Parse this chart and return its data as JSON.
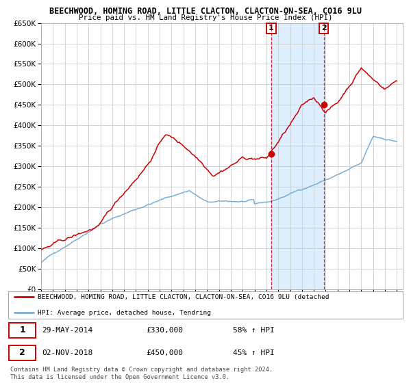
{
  "title1": "BEECHWOOD, HOMING ROAD, LITTLE CLACTON, CLACTON-ON-SEA, CO16 9LU",
  "title2": "Price paid vs. HM Land Registry's House Price Index (HPI)",
  "red_legend": "BEECHWOOD, HOMING ROAD, LITTLE CLACTON, CLACTON-ON-SEA, CO16 9LU (detached",
  "blue_legend": "HPI: Average price, detached house, Tendring",
  "annotation1_date": "29-MAY-2014",
  "annotation1_price": "£330,000",
  "annotation1_pct": "58% ↑ HPI",
  "annotation2_date": "02-NOV-2018",
  "annotation2_price": "£450,000",
  "annotation2_pct": "45% ↑ HPI",
  "footer": "Contains HM Land Registry data © Crown copyright and database right 2024.\nThis data is licensed under the Open Government Licence v3.0.",
  "red_color": "#cc0000",
  "blue_color": "#7aadd4",
  "shade_color": "#ddeeff",
  "grid_color": "#cccccc",
  "bg_color": "#ffffff",
  "ylim": [
    0,
    650000
  ],
  "yticks": [
    0,
    50000,
    100000,
    150000,
    200000,
    250000,
    300000,
    350000,
    400000,
    450000,
    500000,
    550000,
    600000,
    650000
  ],
  "year_start": 1995,
  "year_end": 2025,
  "sale1_year": 2014.41,
  "sale1_value": 330000,
  "sale2_year": 2018.84,
  "sale2_value": 450000
}
